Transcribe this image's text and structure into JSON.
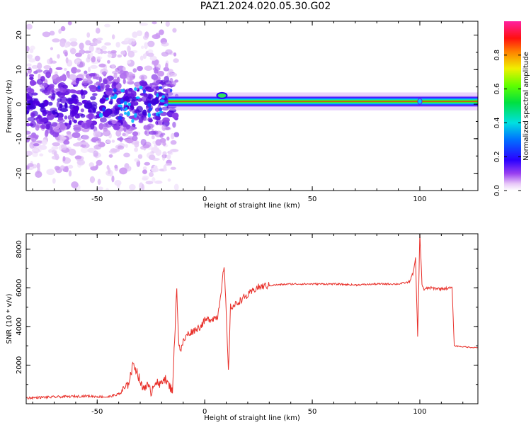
{
  "figure": {
    "title": "PAZ1.2024.020.05.30.G02"
  },
  "chart_data": [
    {
      "type": "heatmap",
      "xlabel": "Height of straight line (km)",
      "ylabel": "Frequency (Hz)",
      "xlim": [
        -83,
        127
      ],
      "ylim": [
        -25,
        24
      ],
      "xticks": [
        -50,
        0,
        50,
        100
      ],
      "yticks": [
        -20,
        -10,
        0,
        10,
        20
      ],
      "colorbar": {
        "label": "Normalized spectral amplitude",
        "range": [
          0,
          1
        ],
        "ticks": [
          "0.0",
          "0.2",
          "0.4",
          "0.6",
          "0.8"
        ],
        "colormap": "rainbow (white-violet-blue-cyan-green-yellow-red-magenta)"
      },
      "features": {
        "noisy_region_x": [
          -83,
          -17
        ],
        "noisy_region_freq_spread": [
          -25,
          24
        ],
        "stable_tone_start_x": -17,
        "stable_tone_freq": 0.8,
        "stable_tone_end_x": 127
      }
    },
    {
      "type": "line",
      "xlabel": "Height of straight line (km)",
      "ylabel": "SNR (10 * v/v)",
      "xlim": [
        -83,
        127
      ],
      "ylim": [
        0,
        8800
      ],
      "xticks": [
        -50,
        0,
        50,
        100
      ],
      "yticks": [
        2000,
        4000,
        6000,
        8000
      ],
      "color": "#e8302a",
      "series": [
        {
          "x": [
            -83,
            -70,
            -55,
            -45,
            -40,
            -36,
            -33,
            -31,
            -29,
            -27,
            -25,
            -23,
            -21,
            -19,
            -17,
            -15,
            -13,
            -12,
            -11,
            -10,
            -8,
            -5,
            -2,
            0,
            3,
            6,
            8,
            9,
            10,
            11,
            12,
            14,
            17,
            20,
            24,
            28,
            33,
            40,
            50,
            60,
            70,
            80,
            90,
            95,
            97,
            98,
            99,
            100,
            101,
            102,
            104,
            110,
            115,
            116,
            120,
            127
          ],
          "y": [
            300,
            350,
            400,
            350,
            500,
            900,
            2100,
            1500,
            800,
            1000,
            600,
            1200,
            900,
            1400,
            1000,
            700,
            6000,
            3000,
            2800,
            3200,
            3600,
            3800,
            4000,
            4300,
            4400,
            4500,
            6200,
            7100,
            4700,
            1600,
            5000,
            5100,
            5400,
            5600,
            6000,
            6100,
            6150,
            6200,
            6200,
            6200,
            6150,
            6200,
            6200,
            6300,
            6800,
            7500,
            3500,
            8800,
            6200,
            5900,
            6000,
            5950,
            6000,
            3000,
            2950,
            2900
          ]
        }
      ]
    }
  ]
}
